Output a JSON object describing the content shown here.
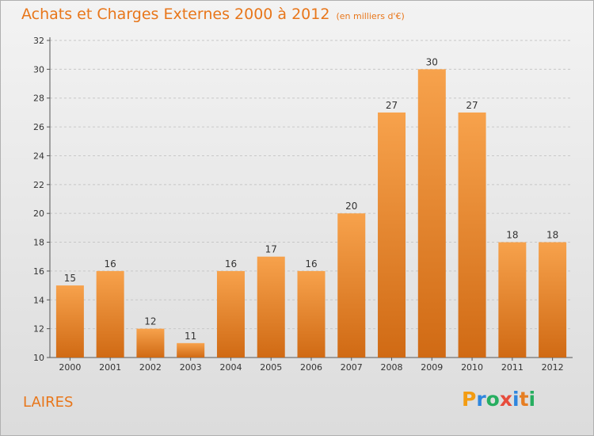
{
  "title": "Achats et Charges Externes 2000 à 2012",
  "unit": "(en milliers d'€)",
  "commune": "LAIRES",
  "logo": {
    "letters": [
      "P",
      "r",
      "o",
      "x",
      "i",
      "t",
      "i"
    ],
    "colors": [
      "#f39c12",
      "#2e86de",
      "#27ae60",
      "#e74c3c",
      "#2e86de",
      "#e67e22",
      "#27ae60"
    ]
  },
  "colors": {
    "bar_top": "#f7a24c",
    "bar_bottom": "#d06a14",
    "title": "#e8761a"
  },
  "chart_data": {
    "type": "bar",
    "title": "Achats et Charges Externes 2000 à 2012",
    "subtitle": "(en milliers d'€)",
    "categories": [
      "2000",
      "2001",
      "2002",
      "2003",
      "2004",
      "2005",
      "2006",
      "2007",
      "2008",
      "2009",
      "2010",
      "2011",
      "2012"
    ],
    "values": [
      15,
      16,
      12,
      11,
      16,
      17,
      16,
      20,
      27,
      30,
      27,
      18,
      18
    ],
    "ylim": [
      10,
      32
    ],
    "yticks": [
      10,
      12,
      14,
      16,
      18,
      20,
      22,
      24,
      26,
      28,
      30,
      32
    ],
    "grid": true
  }
}
